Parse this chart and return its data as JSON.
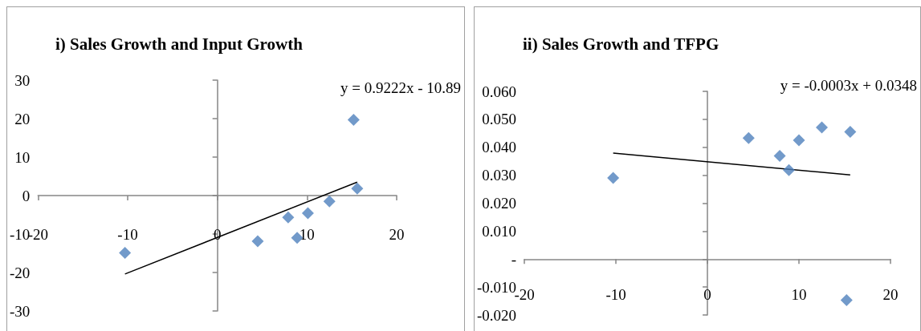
{
  "chart_data": [
    {
      "type": "scatter",
      "title": "i) Sales Growth and Input Growth",
      "xlim": [
        -20,
        20
      ],
      "xticks": [
        -20,
        -10,
        0,
        10,
        20
      ],
      "ylim": [
        -30,
        30
      ],
      "yticks": [
        -30,
        -20,
        -10,
        0,
        10,
        20,
        30
      ],
      "annotations": [
        "y = 0.9222x - 10.89"
      ],
      "series": [
        {
          "color": "#4f81bd",
          "marker": "diamond",
          "x": [
            -10.3,
            4.5,
            7.9,
            8.9,
            10.1,
            12.5,
            15.2,
            15.6
          ],
          "values": [
            -14.9,
            -11.9,
            -5.7,
            -11.0,
            -4.6,
            -1.5,
            19.7,
            1.8
          ]
        },
        {
          "type": "line",
          "color": "#000000",
          "marker": "none",
          "x": [
            -10.3,
            15.6
          ],
          "values": [
            -20.4,
            3.5
          ]
        }
      ]
    },
    {
      "type": "scatter",
      "title": "ii) Sales Growth and TFPG",
      "xlim": [
        -20,
        20
      ],
      "xticks": [
        -20,
        -10,
        0,
        10,
        20
      ],
      "ylim": [
        -0.02,
        0.06
      ],
      "yticks": [
        {
          "value": -0.02,
          "label": "-0.020"
        },
        {
          "value": -0.01,
          "label": "-0.010"
        },
        {
          "value": 0,
          "label": "-"
        },
        {
          "value": 0.01,
          "label": "0.010"
        },
        {
          "value": 0.02,
          "label": "0.020"
        },
        {
          "value": 0.03,
          "label": "0.030"
        },
        {
          "value": 0.04,
          "label": "0.040"
        },
        {
          "value": 0.05,
          "label": "0.050"
        },
        {
          "value": 0.06,
          "label": "0.060"
        }
      ],
      "annotations": [
        "y = -0.0003x + 0.0348"
      ],
      "series": [
        {
          "color": "#4f81bd",
          "marker": "diamond",
          "x": [
            -10.3,
            4.5,
            7.9,
            8.9,
            10.0,
            12.5,
            15.6,
            15.2
          ],
          "values": [
            0.029,
            0.0433,
            0.0369,
            0.0318,
            0.0425,
            0.0471,
            0.0455,
            -0.0147
          ]
        },
        {
          "type": "line",
          "color": "#000000",
          "marker": "none",
          "x": [
            -10.3,
            15.6
          ],
          "values": [
            0.0379,
            0.0301
          ]
        }
      ]
    }
  ]
}
